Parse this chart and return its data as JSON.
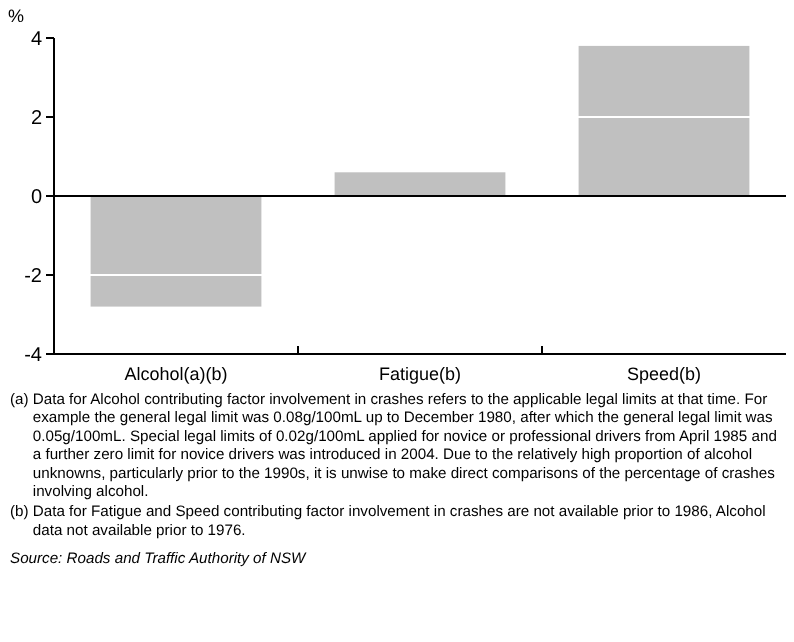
{
  "chart_data": {
    "type": "bar",
    "ylabel": "%",
    "categories": [
      "Alcohol(a)(b)",
      "Fatigue(b)",
      "Speed(b)"
    ],
    "values": [
      -2.8,
      0.6,
      3.8
    ],
    "color": "#c0c0c0",
    "ylim": [
      -4,
      4
    ],
    "yticks": [
      -4,
      -2,
      0,
      2,
      4
    ],
    "grid": "y",
    "annotations": [
      "(a) Data for Alcohol contributing factor involvement in crashes refers to the applicable legal limits at that time. For example the general legal limit was 0.08g/100mL up to December 1980, after which the general legal limit was 0.05g/100mL. Special legal limits of 0.02g/100mL applied for novice or professional drivers from April 1985 and a further zero limit for novice drivers was introduced in 2004. Due to the relatively high proportion of alcohol unknowns, particularly prior to the 1990s, it is unwise to make direct comparisons of the percentage of crashes involving alcohol.",
      "(b) Data for Fatigue and Speed contributing factor involvement in crashes are not available prior to 1986, Alcohol data not available prior to 1976.",
      "Source: Roads and Traffic Authority of NSW"
    ]
  }
}
